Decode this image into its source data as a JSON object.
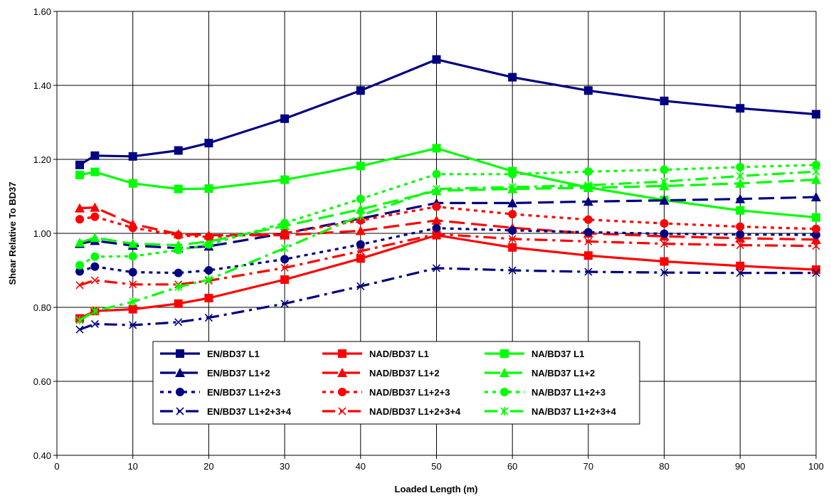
{
  "chart_data": {
    "type": "line",
    "title": "",
    "xlabel": "Loaded Length (m)",
    "ylabel": "Shear Relative To BD37",
    "xlim": [
      0,
      100
    ],
    "ylim": [
      0.4,
      1.6
    ],
    "xticks": [
      "0",
      "10",
      "20",
      "30",
      "40",
      "50",
      "60",
      "70",
      "80",
      "90",
      "100"
    ],
    "yticks": [
      "0.40",
      "0.60",
      "0.80",
      "1.00",
      "1.20",
      "1.40",
      "1.60"
    ],
    "grid": "horizontal and vertical major gridlines",
    "legend_position": "lower-left inside plot",
    "x": [
      3,
      5,
      10,
      16,
      20,
      30,
      40,
      50,
      60,
      70,
      80,
      90,
      100
    ],
    "series": [
      {
        "name": "EN/BD37 L1",
        "color": "#000080",
        "dash": "solid",
        "marker": "square",
        "values": [
          1.185,
          1.21,
          1.208,
          1.224,
          1.244,
          1.31,
          1.386,
          1.47,
          1.422,
          1.386,
          1.358,
          1.338,
          1.322
        ]
      },
      {
        "name": "NAD/BD37 L1",
        "color": "#ff0000",
        "dash": "solid",
        "marker": "square",
        "values": [
          0.77,
          0.79,
          0.795,
          0.81,
          0.825,
          0.875,
          0.932,
          0.995,
          0.962,
          0.94,
          0.924,
          0.912,
          0.902
        ]
      },
      {
        "name": "NA/BD37 L1",
        "color": "#00ff00",
        "dash": "solid",
        "marker": "square",
        "values": [
          1.158,
          1.166,
          1.135,
          1.12,
          1.121,
          1.145,
          1.182,
          1.23,
          1.168,
          1.124,
          1.09,
          1.062,
          1.043
        ]
      },
      {
        "name": "EN/BD37 L1+2",
        "color": "#000080",
        "dash": "longdash",
        "marker": "triangle",
        "values": [
          0.972,
          0.98,
          0.967,
          0.96,
          0.965,
          1.0,
          1.04,
          1.082,
          1.082,
          1.086,
          1.089,
          1.093,
          1.098
        ]
      },
      {
        "name": "NAD/BD37 L1+2",
        "color": "#ff0000",
        "dash": "longdash",
        "marker": "triangle",
        "values": [
          1.068,
          1.07,
          1.025,
          0.998,
          0.995,
          0.995,
          1.007,
          1.035,
          1.015,
          1.0,
          0.992,
          0.987,
          0.983
        ]
      },
      {
        "name": "NA/BD37 L1+2",
        "color": "#00ff00",
        "dash": "longdash",
        "marker": "triangle",
        "values": [
          0.975,
          0.988,
          0.972,
          0.968,
          0.978,
          1.02,
          1.065,
          1.115,
          1.12,
          1.123,
          1.128,
          1.135,
          1.145
        ]
      },
      {
        "name": "EN/BD37 L1+2+3",
        "color": "#000080",
        "dash": "dot",
        "marker": "circle",
        "values": [
          0.897,
          0.91,
          0.895,
          0.893,
          0.9,
          0.93,
          0.97,
          1.014,
          1.008,
          1.003,
          0.999,
          0.997,
          0.996
        ]
      },
      {
        "name": "NAD/BD37 L1+2+3",
        "color": "#ff0000",
        "dash": "dot",
        "marker": "circle",
        "values": [
          1.038,
          1.045,
          1.015,
          0.995,
          0.99,
          1.0,
          1.035,
          1.072,
          1.052,
          1.037,
          1.027,
          1.018,
          1.012
        ]
      },
      {
        "name": "NA/BD37 L1+2+3",
        "color": "#00ff00",
        "dash": "dot",
        "marker": "circle",
        "values": [
          0.914,
          0.937,
          0.938,
          0.955,
          0.97,
          1.028,
          1.093,
          1.16,
          1.16,
          1.167,
          1.172,
          1.179,
          1.185
        ]
      },
      {
        "name": "EN/BD37 L1+2+3+4",
        "color": "#000080",
        "dash": "dashdot",
        "marker": "x",
        "values": [
          0.74,
          0.755,
          0.752,
          0.76,
          0.772,
          0.81,
          0.857,
          0.906,
          0.9,
          0.896,
          0.894,
          0.893,
          0.893
        ]
      },
      {
        "name": "NAD/BD37 L1+2+3+4",
        "color": "#ff0000",
        "dash": "dashdot",
        "marker": "x",
        "values": [
          0.86,
          0.873,
          0.862,
          0.862,
          0.872,
          0.907,
          0.952,
          0.998,
          0.985,
          0.978,
          0.972,
          0.968,
          0.966
        ]
      },
      {
        "name": "NA/BD37 L1+2+3+4",
        "color": "#00ff00",
        "dash": "dashdot",
        "marker": "star",
        "values": [
          0.765,
          0.79,
          0.815,
          0.855,
          0.875,
          0.96,
          1.048,
          1.12,
          1.125,
          1.13,
          1.14,
          1.155,
          1.167
        ]
      }
    ]
  }
}
